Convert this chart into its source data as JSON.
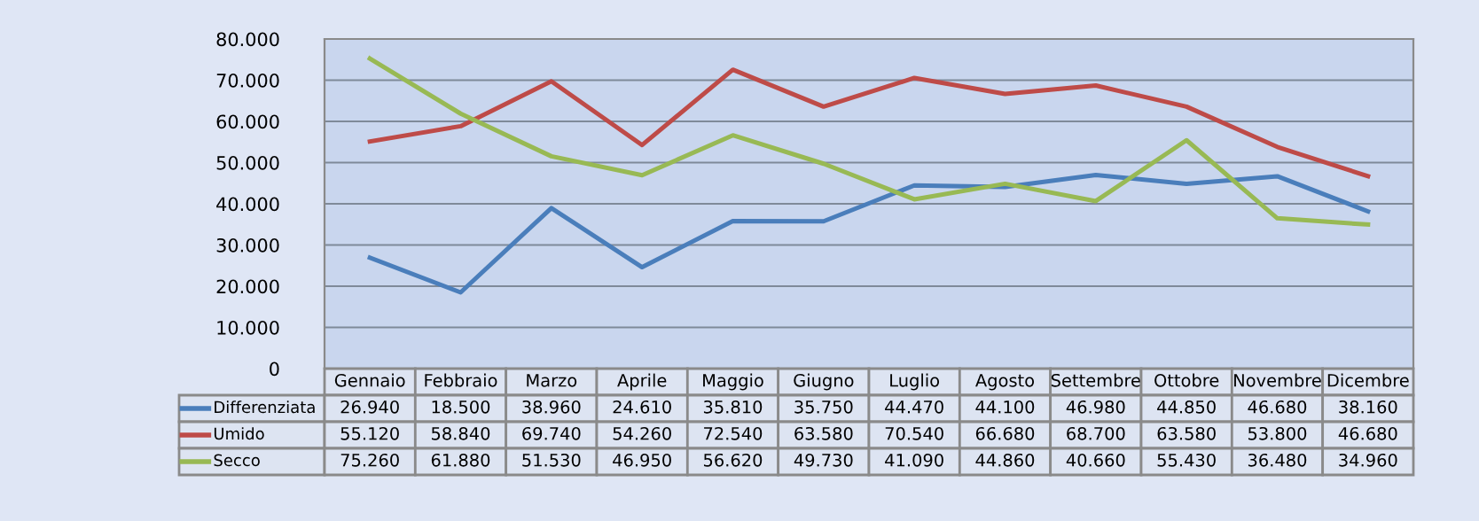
{
  "chart_data": {
    "type": "line",
    "categories": [
      "Gennaio",
      "Febbraio",
      "Marzo",
      "Aprile",
      "Maggio",
      "Giugno",
      "Luglio",
      "Agosto",
      "Settembre",
      "Ottobre",
      "Novembre",
      "Dicembre"
    ],
    "series": [
      {
        "name": "Differenziata",
        "color": "#4a7ebb",
        "values": [
          26940,
          18500,
          38960,
          24610,
          35810,
          35750,
          44470,
          44100,
          46980,
          44850,
          46680,
          38160
        ],
        "value_labels": [
          "26.940",
          "18.500",
          "38.960",
          "24.610",
          "35.810",
          "35.750",
          "44.470",
          "44.100",
          "46.980",
          "44.850",
          "46.680",
          "38.160"
        ]
      },
      {
        "name": "Umido",
        "color": "#be4b48",
        "values": [
          55120,
          58840,
          69740,
          54260,
          72540,
          63580,
          70540,
          66680,
          68700,
          63580,
          53800,
          46680
        ],
        "value_labels": [
          "55.120",
          "58.840",
          "69.740",
          "54.260",
          "72.540",
          "63.580",
          "70.540",
          "66.680",
          "68.700",
          "63.580",
          "53.800",
          "46.680"
        ]
      },
      {
        "name": "Secco",
        "color": "#98b954",
        "values": [
          75260,
          61880,
          51530,
          46950,
          56620,
          49730,
          41090,
          44860,
          40660,
          55430,
          36480,
          34960
        ],
        "value_labels": [
          "75.260",
          "61.880",
          "51.530",
          "46.950",
          "56.620",
          "49.730",
          "41.090",
          "44.860",
          "40.660",
          "55.430",
          "36.480",
          "34.960"
        ]
      }
    ],
    "ylim": [
      0,
      80000
    ],
    "yticks": [
      0,
      {
        "value": 10000,
        "label": "10.000"
      },
      {
        "value": 20000,
        "label": "20.000"
      },
      {
        "value": 30000,
        "label": "30.000"
      },
      {
        "value": 40000,
        "label": "40.000"
      },
      {
        "value": 50000,
        "label": "50.000"
      },
      {
        "value": 60000,
        "label": "60.000"
      },
      {
        "value": 70000,
        "label": "70.000"
      },
      {
        "value": 80000,
        "label": "80.000"
      }
    ],
    "grid": "y",
    "legend": "bottom left",
    "marker": "none",
    "line_style": "solid"
  }
}
